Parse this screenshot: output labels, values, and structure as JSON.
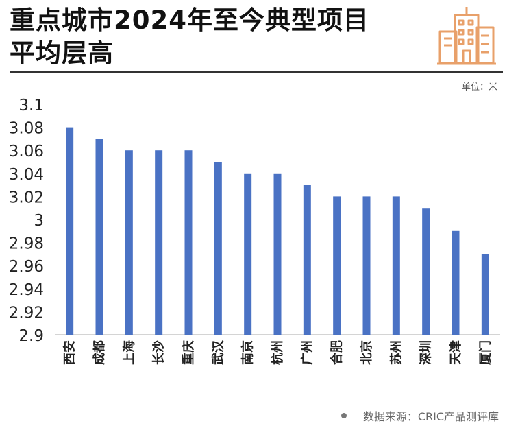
{
  "title": {
    "line1": "重点城市2024年至今典型项目",
    "line2": "平均层高"
  },
  "unit": "单位：米",
  "source": "数据来源：CRIC产品测评库",
  "icon": "building-icon",
  "colors": {
    "bar": "#4a72c4",
    "icon": "#e8a06a",
    "axis": "#aaaaaa"
  },
  "chart_data": {
    "type": "bar",
    "title": "重点城市2024年至今典型项目平均层高",
    "ylabel": "单位：米",
    "xlabel": "",
    "ylim": [
      2.9,
      3.1
    ],
    "yticks": [
      2.9,
      2.92,
      2.94,
      2.96,
      2.98,
      3,
      3.02,
      3.04,
      3.06,
      3.08,
      3.1
    ],
    "categories": [
      "西安",
      "成都",
      "上海",
      "长沙",
      "重庆",
      "武汉",
      "南京",
      "杭州",
      "广州",
      "合肥",
      "北京",
      "苏州",
      "深圳",
      "天津",
      "厦门"
    ],
    "values": [
      3.08,
      3.07,
      3.06,
      3.06,
      3.06,
      3.05,
      3.04,
      3.04,
      3.03,
      3.02,
      3.02,
      3.02,
      3.01,
      2.99,
      2.97
    ],
    "grid": false
  }
}
